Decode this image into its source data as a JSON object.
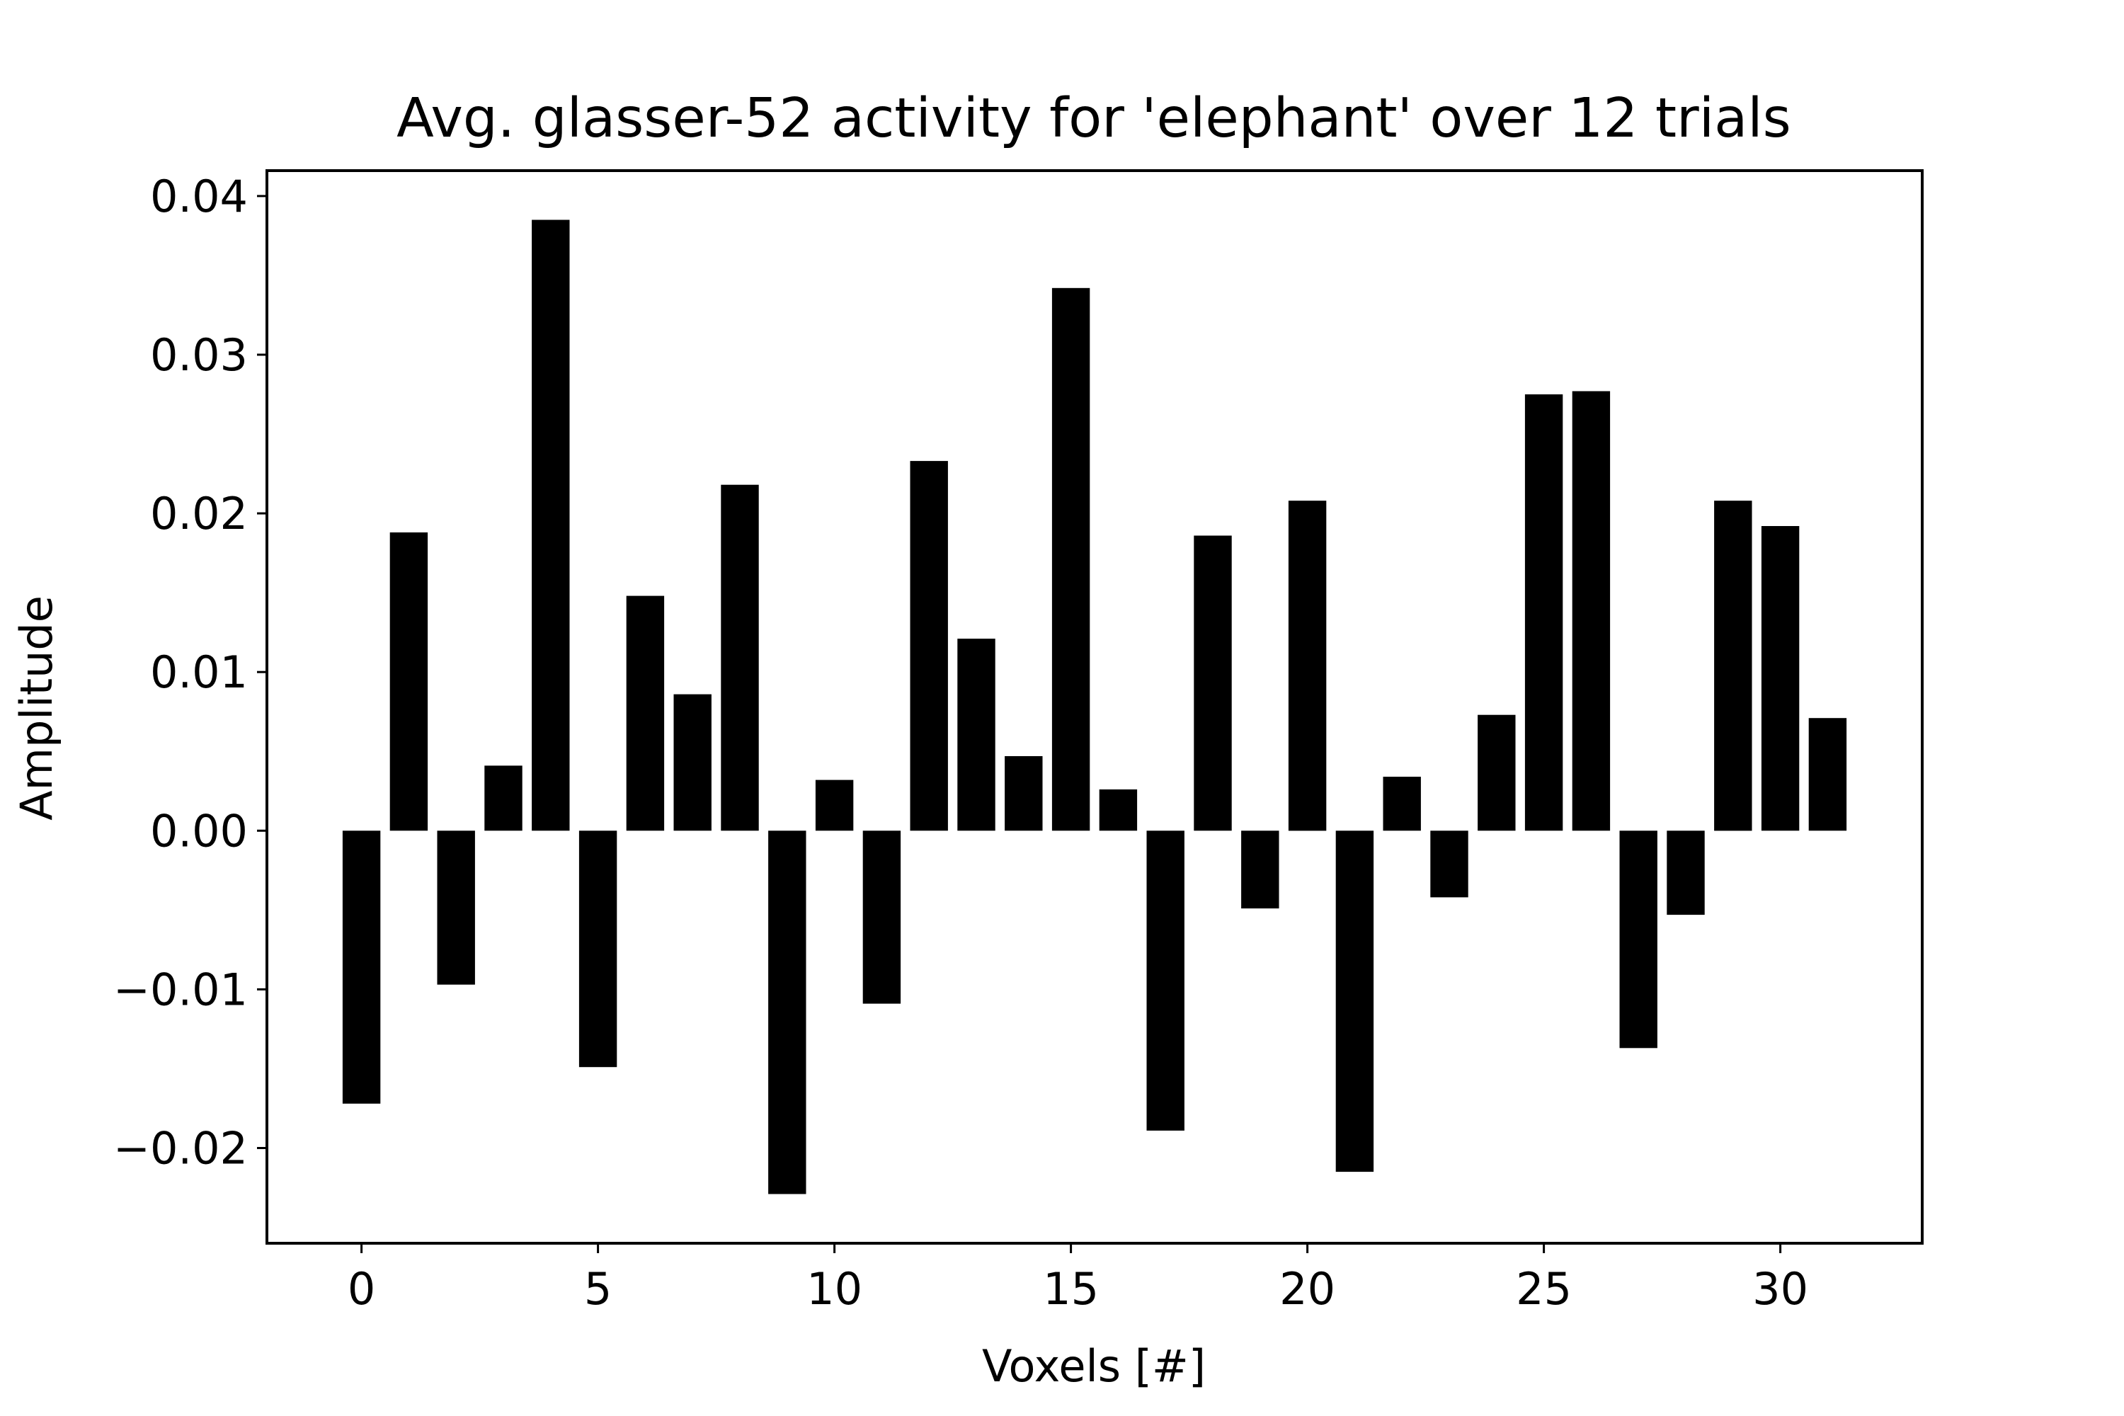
{
  "chart_data": {
    "type": "bar",
    "title": "Avg. glasser-52 activity for 'elephant' over 12 trials",
    "xlabel": "Voxels [#]",
    "ylabel": "Amplitude",
    "x": [
      0,
      1,
      2,
      3,
      4,
      5,
      6,
      7,
      8,
      9,
      10,
      11,
      12,
      13,
      14,
      15,
      16,
      17,
      18,
      19,
      20,
      21,
      22,
      23,
      24,
      25,
      26,
      27,
      28,
      29,
      30,
      31
    ],
    "values": [
      -0.0172,
      0.0188,
      -0.0097,
      0.0041,
      0.0385,
      -0.0149,
      0.0148,
      0.0086,
      0.0218,
      -0.0229,
      0.0032,
      -0.0109,
      0.0233,
      0.0121,
      0.0047,
      0.0342,
      0.0026,
      -0.0189,
      0.0186,
      -0.0049,
      0.0208,
      -0.0215,
      0.0034,
      -0.0042,
      0.0073,
      0.0275,
      0.0277,
      -0.0137,
      -0.0053,
      0.0208,
      0.0192,
      0.0071
    ],
    "xlim": [
      -2.0,
      33.0
    ],
    "ylim": [
      -0.026,
      0.0416
    ],
    "xticks": [
      0,
      5,
      10,
      15,
      20,
      25,
      30
    ],
    "xtick_labels": [
      "0",
      "5",
      "10",
      "15",
      "20",
      "25",
      "30"
    ],
    "yticks": [
      -0.02,
      -0.01,
      0.0,
      0.01,
      0.02,
      0.03,
      0.04
    ],
    "ytick_labels": [
      "−0.02",
      "−0.01",
      "0.00",
      "0.01",
      "0.02",
      "0.03",
      "0.04"
    ],
    "bar_color": "#000000",
    "grid": false,
    "legend": false
  }
}
